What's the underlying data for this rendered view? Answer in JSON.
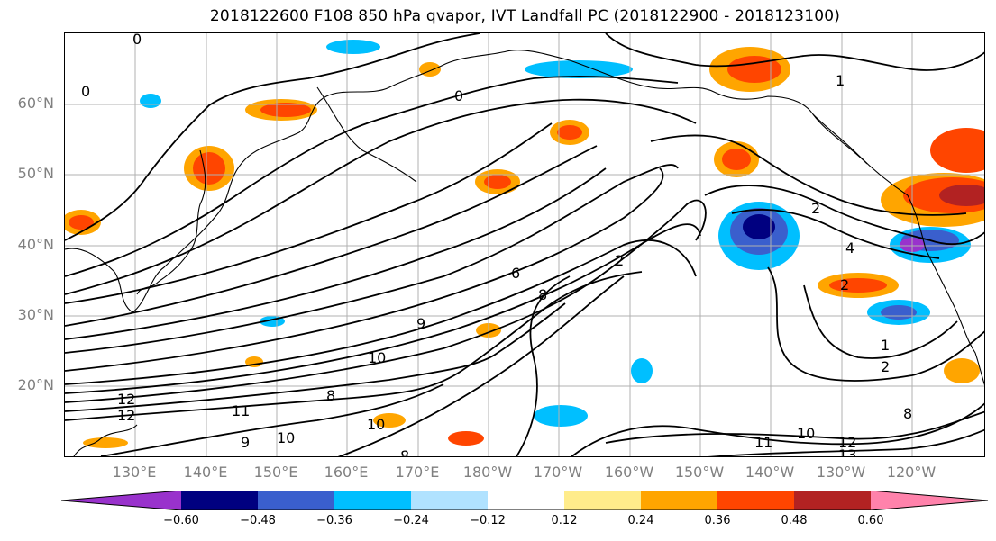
{
  "title": "2018122600 F108 850 hPa qvapor, IVT Landfall PC (2018122900 - 2018123100)",
  "lat_labels": [
    "60°N",
    "50°N",
    "40°N",
    "30°N",
    "20°N"
  ],
  "lon_labels": [
    "130°E",
    "140°E",
    "150°E",
    "160°E",
    "170°E",
    "180°W",
    "170°W",
    "160°W",
    "150°W",
    "140°W",
    "130°W",
    "120°W"
  ],
  "colorbar": {
    "ticks": [
      "−0.60",
      "−0.48",
      "−0.36",
      "−0.24",
      "−0.12",
      "0.12",
      "0.24",
      "0.36",
      "0.48",
      "0.60"
    ],
    "colors": [
      "#9932cc",
      "#000080",
      "#3a5fcd",
      "#00bfff",
      "#b0e2ff",
      "#ffffff",
      "#ffec8b",
      "#ffa500",
      "#ff4500",
      "#b22222",
      "#ff82ab"
    ]
  },
  "contour_labels": [
    "0",
    "0",
    "0",
    "1",
    "2",
    "4",
    "2",
    "1",
    "2",
    "6",
    "8",
    "9",
    "10",
    "12",
    "11",
    "9",
    "10",
    "10",
    "8",
    "12",
    "11",
    "10",
    "12",
    "13",
    "8",
    "8",
    "2"
  ]
}
